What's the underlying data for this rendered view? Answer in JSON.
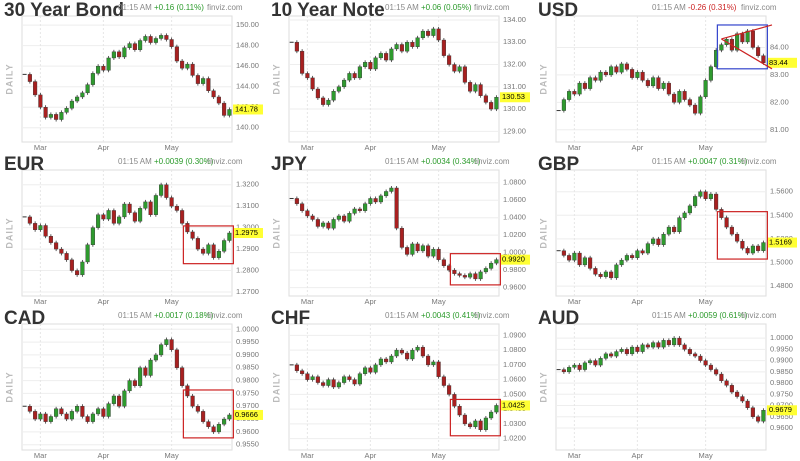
{
  "chart_data": [
    {
      "type": "candlestick",
      "title": "30 Year Bond",
      "time": "01:15 AM",
      "change": "+0.16 (0.11%)",
      "change_color": "#2a9a2a",
      "source": "finviz.com",
      "side_label": "DAILY",
      "categories": [
        null,
        null,
        null,
        "Mar",
        null,
        null,
        null,
        null,
        null,
        null,
        null,
        null,
        null,
        null,
        null,
        "Apr",
        null,
        null,
        null,
        null,
        null,
        null,
        null,
        null,
        null,
        null,
        null,
        null,
        "May",
        null,
        null,
        null,
        null,
        null,
        null,
        null,
        null,
        null,
        null,
        null
      ],
      "values": [
        145.2,
        144.5,
        143.2,
        142.0,
        141.0,
        141.3,
        140.8,
        141.5,
        141.9,
        142.6,
        143.0,
        143.4,
        144.2,
        145.3,
        146.0,
        145.6,
        146.8,
        147.4,
        146.9,
        147.8,
        148.2,
        147.6,
        148.5,
        148.9,
        148.3,
        148.7,
        149.0,
        148.6,
        147.9,
        146.5,
        145.8,
        146.2,
        145.1,
        144.3,
        144.8,
        143.6,
        143.0,
        142.4,
        141.2,
        141.78
      ],
      "ylim": [
        139,
        150.5
      ],
      "yticks": [
        {
          "value": 140,
          "label": "140.00"
        },
        {
          "value": 142,
          "label": "142.00"
        },
        {
          "value": 144,
          "label": "144.00"
        },
        {
          "value": 146,
          "label": "146.00"
        },
        {
          "value": 148,
          "label": "148.00"
        },
        {
          "value": 150,
          "label": "150.00"
        }
      ]
    },
    {
      "type": "candlestick",
      "title": "10 Year Note",
      "time": "01:15 AM",
      "change": "+0.06 (0.05%)",
      "change_color": "#2a9a2a",
      "source": "finviz.com",
      "side_label": "DAILY",
      "categories": [
        null,
        null,
        null,
        "Mar",
        null,
        null,
        null,
        null,
        null,
        null,
        null,
        null,
        null,
        null,
        null,
        "Apr",
        null,
        null,
        null,
        null,
        null,
        null,
        null,
        null,
        null,
        null,
        null,
        null,
        "May",
        null,
        null,
        null,
        null,
        null,
        null,
        null,
        null,
        null,
        null,
        null
      ],
      "values": [
        133.0,
        132.6,
        131.6,
        131.4,
        130.9,
        130.5,
        130.2,
        130.4,
        130.8,
        131.0,
        131.3,
        131.6,
        131.4,
        131.9,
        132.1,
        131.8,
        132.3,
        132.5,
        132.2,
        132.7,
        132.9,
        132.6,
        133.0,
        132.8,
        133.2,
        133.5,
        133.3,
        133.6,
        133.1,
        132.4,
        132.0,
        131.7,
        131.9,
        131.2,
        130.8,
        131.1,
        130.6,
        130.3,
        130.0,
        130.53
      ],
      "ylim": [
        128.7,
        134
      ],
      "yticks": [
        {
          "value": 129,
          "label": "129.00"
        },
        {
          "value": 130,
          "label": "130.00"
        },
        {
          "value": 131,
          "label": "131.00"
        },
        {
          "value": 132,
          "label": "132.00"
        },
        {
          "value": 133,
          "label": "133.00"
        },
        {
          "value": 134,
          "label": "134.00"
        }
      ]
    },
    {
      "type": "candlestick",
      "title": "USD",
      "time": "01:15 AM",
      "change": "-0.26 (0.31%)",
      "change_color": "#cc2222",
      "source": "finviz.com",
      "side_label": "DAILY",
      "categories": [
        null,
        null,
        null,
        "Mar",
        null,
        null,
        null,
        null,
        null,
        null,
        null,
        null,
        null,
        null,
        null,
        "Apr",
        null,
        null,
        null,
        null,
        null,
        null,
        null,
        null,
        null,
        null,
        null,
        null,
        "May",
        null,
        null,
        null,
        null,
        null,
        null,
        null,
        null,
        null,
        null,
        null
      ],
      "values": [
        81.7,
        82.1,
        82.4,
        82.3,
        82.7,
        82.5,
        82.9,
        82.8,
        83.1,
        83.0,
        83.3,
        83.1,
        83.4,
        83.2,
        82.9,
        83.1,
        82.8,
        82.6,
        82.9,
        82.5,
        82.7,
        82.3,
        82.0,
        82.4,
        82.1,
        81.9,
        81.6,
        82.2,
        82.8,
        83.3,
        83.9,
        84.1,
        84.3,
        83.9,
        84.5,
        84.2,
        84.6,
        84.0,
        83.7,
        83.44
      ],
      "ylim": [
        80.7,
        85
      ],
      "yticks": [
        {
          "value": 81,
          "label": "81.00"
        },
        {
          "value": 82,
          "label": "82.00"
        },
        {
          "value": 83,
          "label": "83.00"
        },
        {
          "value": 84,
          "label": "84.00"
        }
      ]
    },
    {
      "type": "candlestick",
      "title": "EUR",
      "time": "01:15 AM",
      "change": "+0.0039 (0.30%)",
      "change_color": "#2a9a2a",
      "source": "finviz.com",
      "side_label": "DAILY",
      "categories": [
        null,
        null,
        null,
        "Mar",
        null,
        null,
        null,
        null,
        null,
        null,
        null,
        null,
        null,
        null,
        null,
        "Apr",
        null,
        null,
        null,
        null,
        null,
        null,
        null,
        null,
        null,
        null,
        null,
        null,
        "May",
        null,
        null,
        null,
        null,
        null,
        null,
        null,
        null,
        null,
        null,
        null
      ],
      "values": [
        1.305,
        1.302,
        1.299,
        1.301,
        1.296,
        1.293,
        1.29,
        1.288,
        1.285,
        1.28,
        1.278,
        1.284,
        1.292,
        1.3,
        1.306,
        1.304,
        1.308,
        1.302,
        1.305,
        1.311,
        1.307,
        1.303,
        1.309,
        1.312,
        1.306,
        1.315,
        1.32,
        1.314,
        1.31,
        1.308,
        1.302,
        1.298,
        1.295,
        1.29,
        1.288,
        1.292,
        1.286,
        1.289,
        1.294,
        1.2975
      ],
      "ylim": [
        1.27,
        1.325
      ],
      "yticks": [
        {
          "value": 1.27,
          "label": "1.2700"
        },
        {
          "value": 1.28,
          "label": "1.2800"
        },
        {
          "value": 1.29,
          "label": "1.2900"
        },
        {
          "value": 1.3,
          "label": "1.3000"
        },
        {
          "value": 1.31,
          "label": "1.3100"
        },
        {
          "value": 1.32,
          "label": "1.3200"
        }
      ]
    },
    {
      "type": "candlestick",
      "title": "JPY",
      "time": "01:15 AM",
      "change": "+0.0034 (0.34%)",
      "change_color": "#2a9a2a",
      "source": "finviz.com",
      "side_label": "DAILY",
      "categories": [
        null,
        null,
        null,
        "Mar",
        null,
        null,
        null,
        null,
        null,
        null,
        null,
        null,
        null,
        null,
        null,
        "Apr",
        null,
        null,
        null,
        null,
        null,
        null,
        null,
        null,
        null,
        null,
        null,
        null,
        "May",
        null,
        null,
        null,
        null,
        null,
        null,
        null,
        null,
        null,
        null,
        null
      ],
      "values": [
        1.062,
        1.056,
        1.048,
        1.042,
        1.038,
        1.03,
        1.034,
        1.028,
        1.038,
        1.042,
        1.036,
        1.045,
        1.05,
        1.048,
        1.056,
        1.062,
        1.058,
        1.065,
        1.07,
        1.074,
        1.028,
        1.006,
        0.998,
        1.01,
        1.002,
        1.008,
        0.996,
        1.004,
        0.992,
        0.985,
        0.98,
        0.976,
        0.974,
        0.972,
        0.976,
        0.97,
        0.978,
        0.982,
        0.988,
        0.992
      ],
      "value_labels": [
        null,
        null,
        null,
        null,
        null,
        null,
        null,
        null,
        null,
        null,
        null,
        null,
        null,
        null,
        null,
        null,
        null,
        null,
        null,
        null,
        null,
        null,
        null,
        null,
        null,
        null,
        null,
        null,
        null,
        null,
        null,
        null,
        null,
        null,
        null,
        null,
        null,
        null,
        null,
        "0.9920"
      ],
      "ylim": [
        0.955,
        1.09
      ],
      "yticks": [
        {
          "value": 0.96,
          "label": "0.9600"
        },
        {
          "value": 0.98,
          "label": "0.9800"
        },
        {
          "value": 1.0,
          "label": "1.0000"
        },
        {
          "value": 1.02,
          "label": "1.0200"
        },
        {
          "value": 1.04,
          "label": "1.0400"
        },
        {
          "value": 1.06,
          "label": "1.0600"
        },
        {
          "value": 1.08,
          "label": "1.0800"
        }
      ]
    },
    {
      "type": "candlestick",
      "title": "GBP",
      "time": "01:15 AM",
      "change": "+0.0047 (0.31%)",
      "change_color": "#2a9a2a",
      "source": "finviz.com",
      "side_label": "DAILY",
      "categories": [
        null,
        null,
        null,
        "Mar",
        null,
        null,
        null,
        null,
        null,
        null,
        null,
        null,
        null,
        null,
        null,
        "Apr",
        null,
        null,
        null,
        null,
        null,
        null,
        null,
        null,
        null,
        null,
        null,
        null,
        "May",
        null,
        null,
        null,
        null,
        null,
        null,
        null,
        null,
        null,
        null,
        null
      ],
      "values": [
        1.51,
        1.506,
        1.502,
        1.508,
        1.498,
        1.504,
        1.495,
        1.49,
        1.488,
        1.492,
        1.487,
        1.498,
        1.502,
        1.506,
        1.504,
        1.51,
        1.508,
        1.516,
        1.52,
        1.515,
        1.524,
        1.53,
        1.526,
        1.538,
        1.542,
        1.548,
        1.556,
        1.56,
        1.554,
        1.558,
        1.545,
        1.538,
        1.53,
        1.524,
        1.518,
        1.512,
        1.508,
        1.514,
        1.51,
        1.5169
      ],
      "ylim": [
        1.475,
        1.575
      ],
      "yticks": [
        {
          "value": 1.48,
          "label": "1.4800"
        },
        {
          "value": 1.5,
          "label": "1.5000"
        },
        {
          "value": 1.52,
          "label": "1.5200"
        },
        {
          "value": 1.54,
          "label": "1.5400"
        },
        {
          "value": 1.56,
          "label": "1.5600"
        }
      ]
    },
    {
      "type": "candlestick",
      "title": "CAD",
      "time": "01:15 AM",
      "change": "+0.0017 (0.18%)",
      "change_color": "#2a9a2a",
      "source": "finviz.com",
      "side_label": "DAILY",
      "categories": [
        null,
        null,
        null,
        "Mar",
        null,
        null,
        null,
        null,
        null,
        null,
        null,
        null,
        null,
        null,
        null,
        "Apr",
        null,
        null,
        null,
        null,
        null,
        null,
        null,
        null,
        null,
        null,
        null,
        null,
        "May",
        null,
        null,
        null,
        null,
        null,
        null,
        null,
        null,
        null,
        null,
        null
      ],
      "values": [
        0.97,
        0.968,
        0.965,
        0.967,
        0.964,
        0.966,
        0.969,
        0.967,
        0.965,
        0.968,
        0.97,
        0.966,
        0.964,
        0.967,
        0.969,
        0.966,
        0.971,
        0.974,
        0.97,
        0.976,
        0.98,
        0.978,
        0.985,
        0.982,
        0.988,
        0.99,
        0.994,
        0.996,
        0.992,
        0.985,
        0.978,
        0.974,
        0.97,
        0.968,
        0.964,
        0.962,
        0.96,
        0.963,
        0.965,
        0.9666
      ],
      "ylim": [
        0.9545,
        1.0005
      ],
      "yticks": [
        {
          "value": 0.955,
          "label": "0.9550"
        },
        {
          "value": 0.96,
          "label": "0.9600"
        },
        {
          "value": 0.965,
          "label": "0.9650"
        },
        {
          "value": 0.97,
          "label": "0.9700"
        },
        {
          "value": 0.975,
          "label": "0.9750"
        },
        {
          "value": 0.98,
          "label": "0.9800"
        },
        {
          "value": 0.985,
          "label": "0.9850"
        },
        {
          "value": 0.99,
          "label": "0.9900"
        },
        {
          "value": 0.995,
          "label": "0.9950"
        },
        {
          "value": 1.0,
          "label": "1.0000"
        }
      ]
    },
    {
      "type": "candlestick",
      "title": "CHF",
      "time": "01:15 AM",
      "change": "+0.0043 (0.41%)",
      "change_color": "#2a9a2a",
      "source": "finviz.com",
      "side_label": "DAILY",
      "categories": [
        null,
        null,
        null,
        "Mar",
        null,
        null,
        null,
        null,
        null,
        null,
        null,
        null,
        null,
        null,
        null,
        "Apr",
        null,
        null,
        null,
        null,
        null,
        null,
        null,
        null,
        null,
        null,
        null,
        null,
        "May",
        null,
        null,
        null,
        null,
        null,
        null,
        null,
        null,
        null,
        null,
        null
      ],
      "values": [
        1.07,
        1.066,
        1.064,
        1.06,
        1.062,
        1.058,
        1.056,
        1.06,
        1.055,
        1.058,
        1.062,
        1.06,
        1.057,
        1.064,
        1.068,
        1.065,
        1.07,
        1.074,
        1.072,
        1.076,
        1.08,
        1.078,
        1.074,
        1.08,
        1.082,
        1.076,
        1.07,
        1.072,
        1.062,
        1.056,
        1.05,
        1.042,
        1.036,
        1.03,
        1.028,
        1.032,
        1.026,
        1.034,
        1.038,
        1.0425
      ],
      "ylim": [
        1.015,
        1.095
      ],
      "yticks": [
        {
          "value": 1.02,
          "label": "1.0200"
        },
        {
          "value": 1.03,
          "label": "1.0300"
        },
        {
          "value": 1.04,
          "label": "1.0400"
        },
        {
          "value": 1.05,
          "label": "1.0500"
        },
        {
          "value": 1.06,
          "label": "1.0600"
        },
        {
          "value": 1.07,
          "label": "1.0700"
        },
        {
          "value": 1.08,
          "label": "1.0800"
        },
        {
          "value": 1.09,
          "label": "1.0900"
        }
      ]
    },
    {
      "type": "candlestick",
      "title": "AUD",
      "time": "01:15 AM",
      "change": "+0.0059 (0.61%)",
      "change_color": "#2a9a2a",
      "source": "finviz.com",
      "side_label": "DAILY",
      "categories": [
        null,
        null,
        null,
        "Mar",
        null,
        null,
        null,
        null,
        null,
        null,
        null,
        null,
        null,
        null,
        null,
        "Apr",
        null,
        null,
        null,
        null,
        null,
        null,
        null,
        null,
        null,
        null,
        null,
        null,
        "May",
        null,
        null,
        null,
        null,
        null,
        null,
        null,
        null,
        null,
        null,
        null
      ],
      "values": [
        0.986,
        0.985,
        0.987,
        0.988,
        0.986,
        0.989,
        0.99,
        0.988,
        0.991,
        0.993,
        0.992,
        0.994,
        0.995,
        0.993,
        0.996,
        0.994,
        0.997,
        0.996,
        0.998,
        0.996,
        0.999,
        0.997,
        1.0,
        0.997,
        0.995,
        0.993,
        0.992,
        0.99,
        0.988,
        0.986,
        0.984,
        0.981,
        0.979,
        0.976,
        0.974,
        0.972,
        0.969,
        0.965,
        0.963,
        0.9679
      ],
      "ylim": [
        0.952,
        1.0045
      ],
      "yticks": [
        {
          "value": 0.96,
          "label": "0.9600"
        },
        {
          "value": 0.965,
          "label": "0.9650"
        },
        {
          "value": 0.97,
          "label": "0.9700"
        },
        {
          "value": 0.975,
          "label": "0.9750"
        },
        {
          "value": 0.98,
          "label": "0.9800"
        },
        {
          "value": 0.985,
          "label": "0.9850"
        },
        {
          "value": 0.99,
          "label": "0.9900"
        },
        {
          "value": 0.995,
          "label": "0.9950"
        },
        {
          "value": 1.0,
          "label": "1.0000"
        }
      ]
    }
  ]
}
